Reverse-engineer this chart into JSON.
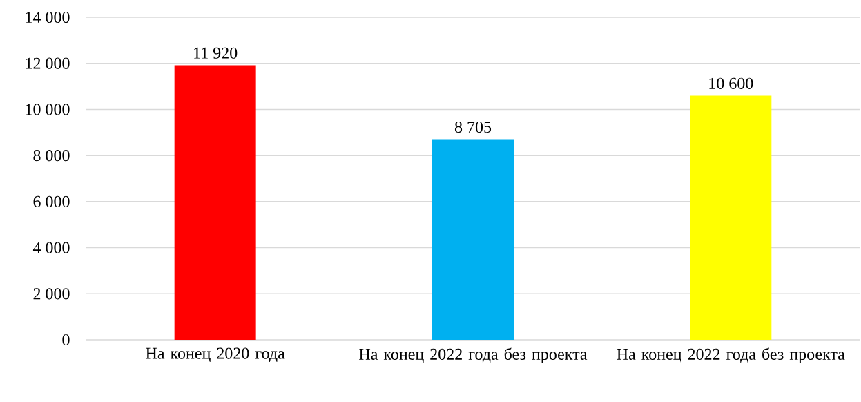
{
  "chart_data": {
    "type": "bar",
    "categories": [
      "На конец 2020 года",
      "На конец 2022 года без проекта",
      "На конец 2022 года без проекта"
    ],
    "values": [
      11920,
      8705,
      10600
    ],
    "colors": [
      "#ff0000",
      "#00b0f0",
      "#ffff00"
    ],
    "value_labels": [
      "11 920",
      "8 705",
      "10 600"
    ],
    "ylim": [
      0,
      14000
    ],
    "yticks": [
      {
        "value": 0,
        "label": "0"
      },
      {
        "value": 2000,
        "label": "2 000"
      },
      {
        "value": 4000,
        "label": "4 000"
      },
      {
        "value": 6000,
        "label": "6 000"
      },
      {
        "value": 8000,
        "label": "8 000"
      },
      {
        "value": 10000,
        "label": "10 000"
      },
      {
        "value": 12000,
        "label": "12 000"
      },
      {
        "value": 14000,
        "label": "14 000"
      }
    ],
    "grid": "y"
  }
}
